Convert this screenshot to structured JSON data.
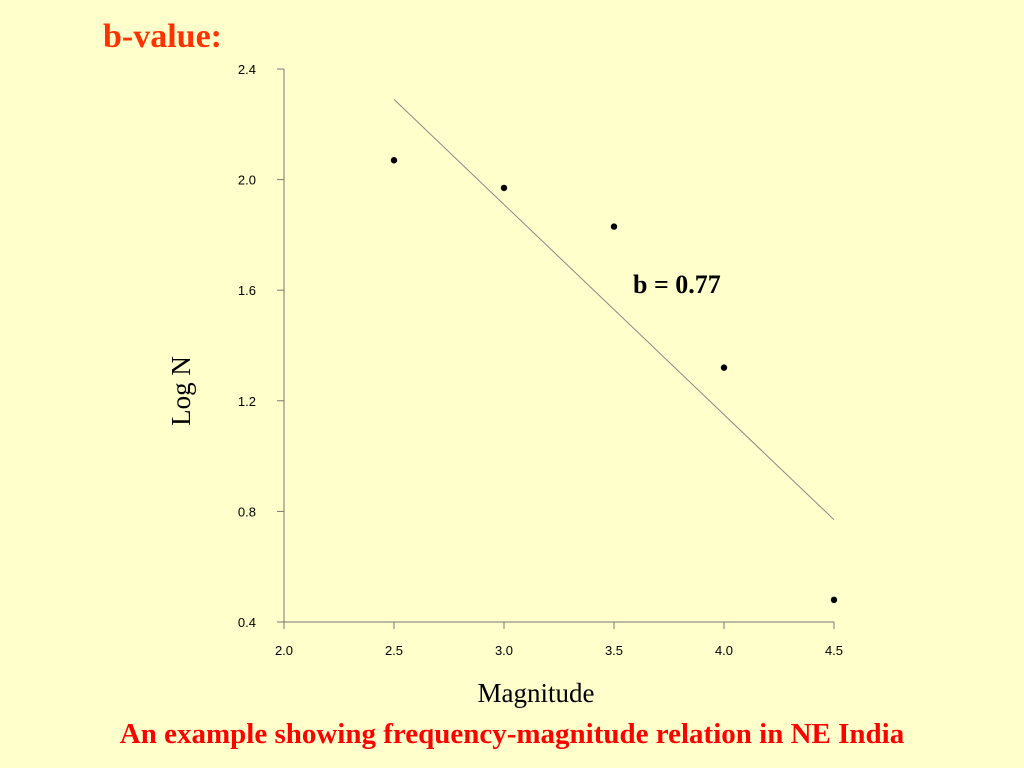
{
  "slide": {
    "title": "b-value:",
    "caption": "An example showing frequency-magnitude relation in NE India",
    "title_color": "#ff3300",
    "caption_color": "#ff0000",
    "background": "#ffffcc"
  },
  "chart_data": {
    "type": "scatter",
    "xlabel": "Magnitude",
    "ylabel": "Log N",
    "xlim": [
      2.0,
      4.5
    ],
    "ylim": [
      0.4,
      2.4
    ],
    "x_ticks": [
      "2.0",
      "2.5",
      "3.0",
      "3.5",
      "4.0",
      "4.5"
    ],
    "y_ticks": [
      "0.4",
      "0.8",
      "1.2",
      "1.6",
      "2.0",
      "2.4"
    ],
    "points": [
      {
        "x": 2.5,
        "y": 2.07
      },
      {
        "x": 3.0,
        "y": 1.97
      },
      {
        "x": 3.5,
        "y": 1.83
      },
      {
        "x": 4.0,
        "y": 1.32
      },
      {
        "x": 4.5,
        "y": 0.48
      }
    ],
    "fit_line": {
      "x": [
        2.5,
        4.5
      ],
      "y": [
        2.29,
        0.77
      ]
    },
    "annotation": "b = 0.77",
    "grid": false
  }
}
